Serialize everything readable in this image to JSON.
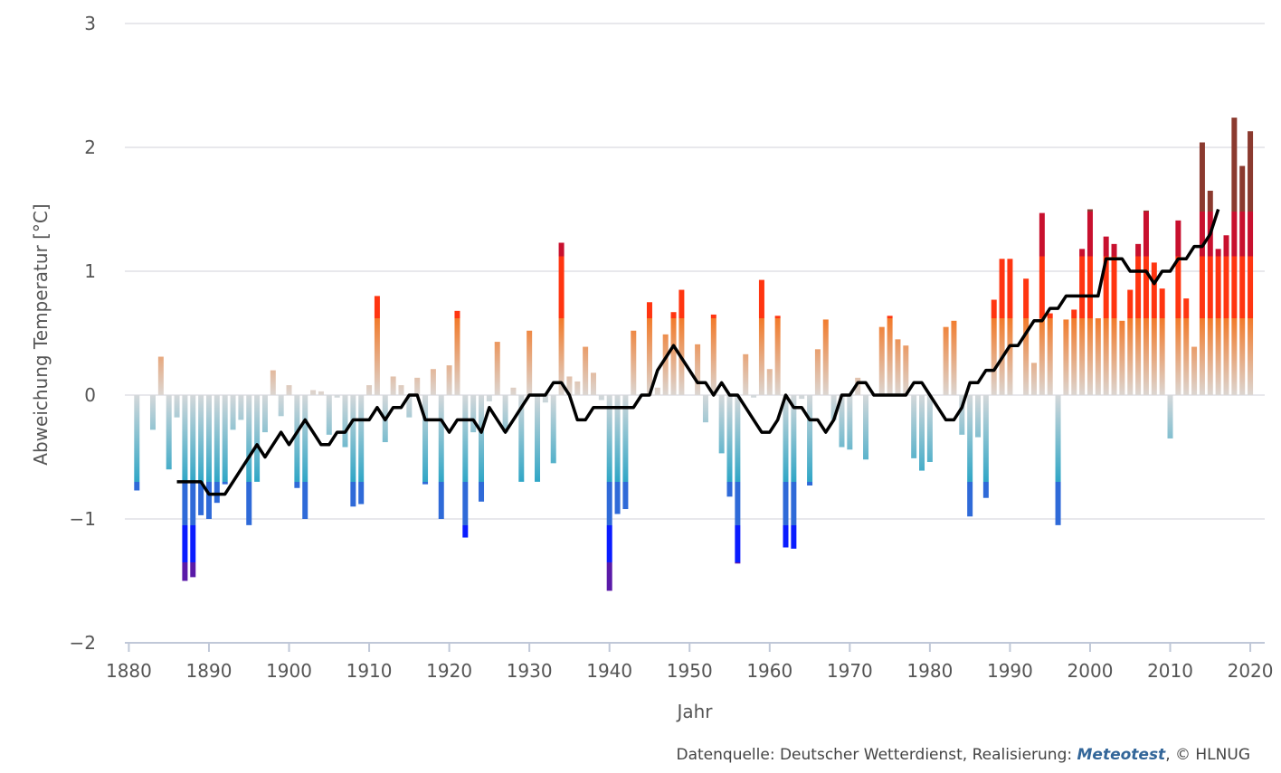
{
  "chart_data": {
    "type": "bar",
    "y_axis_label": "Abweichung Temperatur [°C]",
    "x_axis_label": "Jahr",
    "source": {
      "prefix": "Datenquelle: Deutscher Wetterdienst, Realisierung:",
      "link": "Meteotest",
      "suffix": ", © HLNUG"
    },
    "xlim": [
      1879.5,
      2021.8
    ],
    "xticks": [
      1880,
      1890,
      1900,
      1910,
      1920,
      1930,
      1940,
      1950,
      1960,
      1970,
      1980,
      1990,
      2000,
      2010,
      2020
    ],
    "ylim": [
      -2,
      3
    ],
    "yticks": [
      {
        "value": -2,
        "label": "−2"
      },
      {
        "value": -1,
        "label": "−1"
      },
      0,
      1,
      2,
      3
    ],
    "grid": true,
    "x": [
      1881,
      1882,
      1883,
      1884,
      1885,
      1886,
      1887,
      1888,
      1889,
      1890,
      1891,
      1892,
      1893,
      1894,
      1895,
      1896,
      1897,
      1898,
      1899,
      1900,
      1901,
      1902,
      1903,
      1904,
      1905,
      1906,
      1907,
      1908,
      1909,
      1910,
      1911,
      1912,
      1913,
      1914,
      1915,
      1916,
      1917,
      1918,
      1919,
      1920,
      1921,
      1922,
      1923,
      1924,
      1925,
      1926,
      1927,
      1928,
      1929,
      1930,
      1931,
      1932,
      1933,
      1934,
      1935,
      1936,
      1937,
      1938,
      1939,
      1940,
      1941,
      1942,
      1943,
      1944,
      1945,
      1946,
      1947,
      1948,
      1949,
      1950,
      1951,
      1952,
      1953,
      1954,
      1955,
      1956,
      1957,
      1958,
      1959,
      1960,
      1961,
      1962,
      1963,
      1964,
      1965,
      1966,
      1967,
      1968,
      1969,
      1970,
      1971,
      1972,
      1973,
      1974,
      1975,
      1976,
      1977,
      1978,
      1979,
      1980,
      1981,
      1982,
      1983,
      1984,
      1985,
      1986,
      1987,
      1988,
      1989,
      1990,
      1991,
      1992,
      1993,
      1994,
      1995,
      1996,
      1997,
      1998,
      1999,
      2000,
      2001,
      2002,
      2003,
      2004,
      2005,
      2006,
      2007,
      2008,
      2009,
      2010,
      2011,
      2012,
      2013,
      2014,
      2015,
      2016,
      2017,
      2018,
      2019,
      2020
    ],
    "series": [
      {
        "values": [
          -0.77,
          0,
          -0.28,
          0.31,
          -0.6,
          -0.18,
          -1.5,
          -1.47,
          -0.97,
          -1.0,
          -0.87,
          -0.72,
          -0.28,
          -0.2,
          -1.05,
          -0.7,
          -0.3,
          0.2,
          -0.17,
          0.08,
          -0.75,
          -1.0,
          0.04,
          0.03,
          -0.32,
          -0.02,
          -0.42,
          -0.9,
          -0.88,
          0.08,
          0.8,
          -0.38,
          0.15,
          0.08,
          -0.18,
          0.14,
          -0.72,
          0.21,
          -1.0,
          0.24,
          0.68,
          -1.15,
          -0.3,
          -0.86,
          -0.05,
          0.43,
          -0.3,
          0.06,
          -0.7,
          0.52,
          -0.7,
          -0.06,
          -0.55,
          1.23,
          0.15,
          0.11,
          0.39,
          0.18,
          -0.04,
          -1.58,
          -0.96,
          -0.92,
          0.52,
          0,
          0.75,
          0.06,
          0.49,
          0.67,
          0.85,
          0,
          0.41,
          -0.22,
          0.65,
          -0.47,
          -0.82,
          -1.36,
          0.33,
          -0.02,
          0.93,
          0.21,
          0.64,
          -1.23,
          -1.24,
          -0.03,
          -0.73,
          0.37,
          0.61,
          -0.2,
          -0.42,
          -0.44,
          0.14,
          -0.52,
          0,
          0.55,
          0.64,
          0.45,
          0.4,
          -0.51,
          -0.61,
          -0.54,
          0,
          0.55,
          0.6,
          -0.32,
          -0.98,
          -0.34,
          -0.83,
          0.77,
          1.1,
          1.1,
          0,
          0.94,
          0.26,
          1.47,
          0.66,
          -1.05,
          0.61,
          0.69,
          1.18,
          1.5,
          0.62,
          1.28,
          1.22,
          0.6,
          0.85,
          1.22,
          1.49,
          1.07,
          0.86,
          -0.35,
          1.41,
          0.78,
          0.39,
          2.04,
          1.65,
          1.18,
          1.29,
          2.24,
          1.85,
          2.13
        ]
      },
      {
        "type": "line",
        "color": "#000000",
        "values": [
          null,
          null,
          null,
          null,
          null,
          -0.7,
          -0.7,
          -0.7,
          -0.7,
          -0.8,
          -0.8,
          -0.8,
          -0.7,
          -0.6,
          -0.5,
          -0.4,
          -0.5,
          -0.4,
          -0.3,
          -0.4,
          -0.3,
          -0.2,
          -0.3,
          -0.4,
          -0.4,
          -0.3,
          -0.3,
          -0.2,
          -0.2,
          -0.2,
          -0.1,
          -0.2,
          -0.1,
          -0.1,
          0,
          0,
          -0.2,
          -0.2,
          -0.2,
          -0.3,
          -0.2,
          -0.2,
          -0.2,
          -0.3,
          -0.1,
          -0.2,
          -0.3,
          -0.2,
          -0.1,
          0,
          0,
          0,
          0.1,
          0.1,
          0,
          -0.2,
          -0.2,
          -0.1,
          -0.1,
          -0.1,
          -0.1,
          -0.1,
          -0.1,
          0,
          0,
          0.2,
          0.3,
          0.4,
          0.3,
          0.2,
          0.1,
          0.1,
          0,
          0.1,
          0,
          0,
          -0.1,
          -0.2,
          -0.3,
          -0.3,
          -0.2,
          0,
          -0.1,
          -0.1,
          -0.2,
          -0.2,
          -0.3,
          -0.2,
          0,
          0,
          0.1,
          0.1,
          0,
          0,
          0,
          0,
          0,
          0.1,
          0.1,
          0,
          -0.1,
          -0.2,
          -0.2,
          -0.1,
          0.1,
          0.1,
          0.2,
          0.2,
          0.3,
          0.4,
          0.4,
          0.5,
          0.6,
          0.6,
          0.7,
          0.7,
          0.8,
          0.8,
          0.8,
          0.8,
          0.8,
          1.1,
          1.1,
          1.1,
          1.0,
          1.0,
          1.0,
          0.9,
          1.0,
          1.0,
          1.1,
          1.1,
          1.2,
          1.2,
          1.3,
          1.5,
          null,
          null,
          null,
          null
        ]
      }
    ]
  }
}
